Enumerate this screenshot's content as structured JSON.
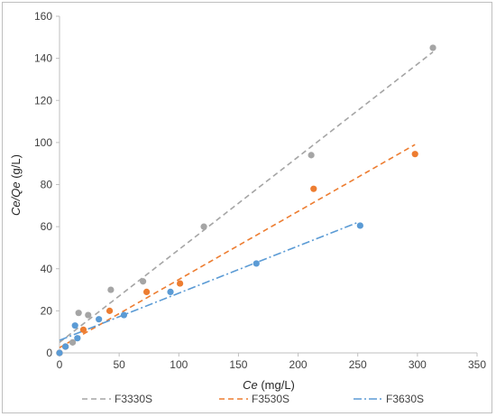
{
  "chart_data": {
    "type": "scatter",
    "title": "",
    "xlabel_italic": "Ce",
    "xlabel_units": " (mg/L)",
    "ylabel_italic": "Ce/Qe",
    "ylabel_units": " (g/L)",
    "xlim": [
      0,
      350
    ],
    "ylim": [
      0,
      160
    ],
    "xticks": [
      0,
      50,
      100,
      150,
      200,
      250,
      300,
      350
    ],
    "yticks": [
      0,
      20,
      40,
      60,
      80,
      100,
      120,
      140,
      160
    ],
    "grid": false,
    "legend_position": "bottom",
    "series": [
      {
        "name": "F3330S",
        "color": "#a5a5a5",
        "dash": "6,4",
        "points": [
          [
            0,
            0
          ],
          [
            5,
            3
          ],
          [
            11,
            5
          ],
          [
            16,
            19
          ],
          [
            24,
            18
          ],
          [
            43,
            30
          ],
          [
            70,
            34
          ],
          [
            121,
            60
          ],
          [
            211,
            94
          ],
          [
            313,
            145
          ]
        ],
        "trendline": [
          [
            0,
            5
          ],
          [
            313,
            143
          ]
        ]
      },
      {
        "name": "F3530S",
        "color": "#ed7d31",
        "dash": "6,4",
        "points": [
          [
            0,
            0
          ],
          [
            5,
            3
          ],
          [
            20,
            11
          ],
          [
            42,
            20
          ],
          [
            73,
            29
          ],
          [
            101,
            33
          ],
          [
            213,
            78
          ],
          [
            298,
            94.5
          ]
        ],
        "trendline": [
          [
            0,
            2.5
          ],
          [
            298,
            99
          ]
        ]
      },
      {
        "name": "F3630S",
        "color": "#5b9bd5",
        "dash": "9,3,2,3",
        "points": [
          [
            0,
            0
          ],
          [
            5,
            3
          ],
          [
            13,
            13
          ],
          [
            15,
            7
          ],
          [
            33,
            16
          ],
          [
            54,
            18
          ],
          [
            93,
            29
          ],
          [
            165,
            42.5
          ],
          [
            252,
            60.5
          ]
        ],
        "trendline": [
          [
            0,
            6
          ],
          [
            250,
            62
          ]
        ]
      }
    ]
  }
}
